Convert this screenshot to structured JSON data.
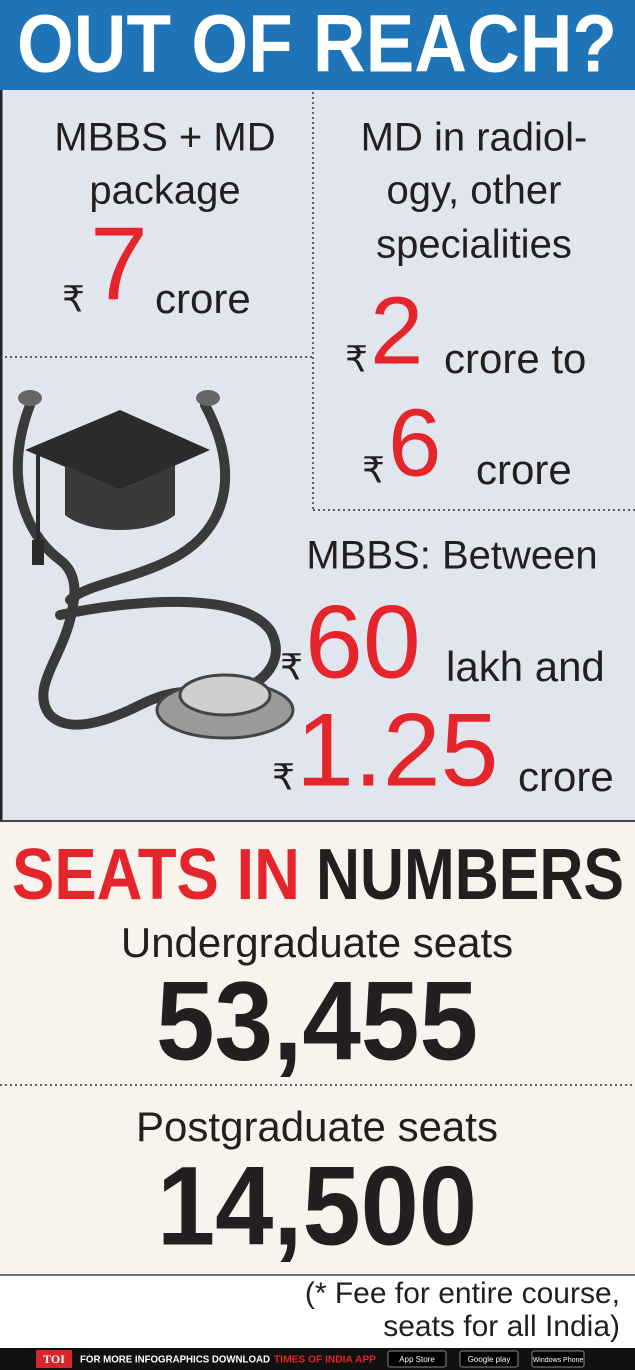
{
  "header": {
    "title": "OUT OF REACH?"
  },
  "fees": [
    {
      "label_lines": [
        "MBBS + MD",
        "package"
      ],
      "from": {
        "currency": "₹",
        "amount": "7",
        "unit": "crore"
      }
    },
    {
      "label_lines": [
        "MD in radiol-",
        "ogy, other",
        "specialities"
      ],
      "from": {
        "currency": "₹",
        "amount": "2",
        "unit": "crore to"
      },
      "to": {
        "currency": "₹",
        "amount": "6",
        "unit": "crore"
      }
    },
    {
      "label_lines": [
        "MBBS: Between"
      ],
      "from": {
        "currency": "₹",
        "amount": "60",
        "unit": "lakh and"
      },
      "to": {
        "currency": "₹",
        "amount": "1.25",
        "unit": "crore"
      }
    }
  ],
  "seats": {
    "title_red": "SEATS IN",
    "title_black": "NUMBERS",
    "items": [
      {
        "label": "Undergraduate seats",
        "value": "53,455"
      },
      {
        "label": "Postgraduate seats",
        "value": "14,500"
      }
    ]
  },
  "note": [
    "(* Fee for entire course,",
    "seats for all India)"
  ],
  "footer": {
    "logo": "TOI",
    "text": "FOR MORE INFOGRAPHICS DOWNLOAD",
    "app": "TIMES OF INDIA APP",
    "stores": [
      "App Store",
      "Google play",
      "Windows Phone"
    ]
  }
}
